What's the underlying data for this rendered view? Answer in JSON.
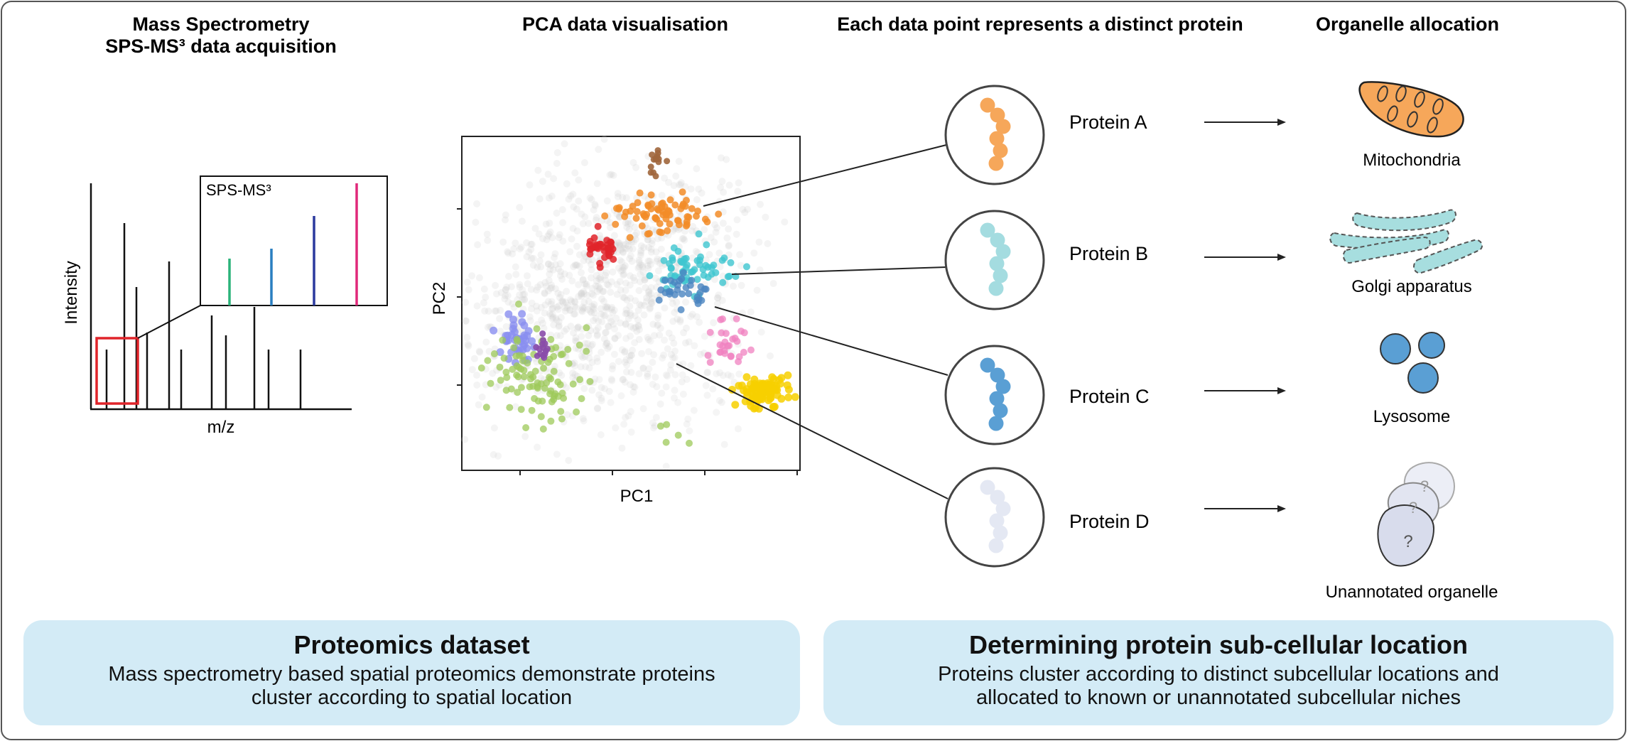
{
  "headers": {
    "ms_line1": "Mass Spectrometry",
    "ms_line2": "SPS-MS³ data acquisition",
    "pca": "PCA data visualisation",
    "points": "Each data point represents a distinct protein",
    "organelle": "Organelle allocation"
  },
  "spectrum": {
    "y_label": "Intensity",
    "x_label": "m/z",
    "inset_label": "SPS-MS³"
  },
  "pca": {
    "x_label": "PC1",
    "y_label": "PC2"
  },
  "proteins": [
    {
      "label": "Protein A",
      "color": "#f6a75a",
      "organelle": "Mitochondria",
      "icon": "mitochondria-icon"
    },
    {
      "label": "Protein B",
      "color": "#a4dce0",
      "organelle": "Golgi apparatus",
      "icon": "golgi-icon"
    },
    {
      "label": "Protein C",
      "color": "#5a9fd4",
      "organelle": "Lysosome",
      "icon": "lysosome-icon"
    },
    {
      "label": "Protein D",
      "color": "#e4e8f3",
      "organelle": "Unannotated organelle",
      "icon": "unannotated-organelle-icon"
    }
  ],
  "cluster_colors": {
    "orange": "#f28c28",
    "brown": "#a0663c",
    "red": "#e0242a",
    "cyan": "#3fc6d0",
    "steelblue": "#4a84c0",
    "pink": "#f082c0",
    "yellow": "#f7d000",
    "green": "#9dc95a",
    "periwinkle": "#8a8ff0",
    "purple": "#8a4caa",
    "background": "#cccccc"
  },
  "inset_peak_colors": [
    "#2bb37a",
    "#2a7fc0",
    "#2b3a9e",
    "#e0287a"
  ],
  "panels": {
    "left_title": "Proteomics dataset",
    "left_body_line1": "Mass spectrometry based spatial proteomics demonstrate proteins",
    "left_body_line2": "cluster according to spatial location",
    "right_title": "Determining protein sub-cellular location",
    "right_body_line1": "Proteins cluster according to distinct subcellular locations and",
    "right_body_line2": "allocated to known or unannotated subcellular niches"
  }
}
